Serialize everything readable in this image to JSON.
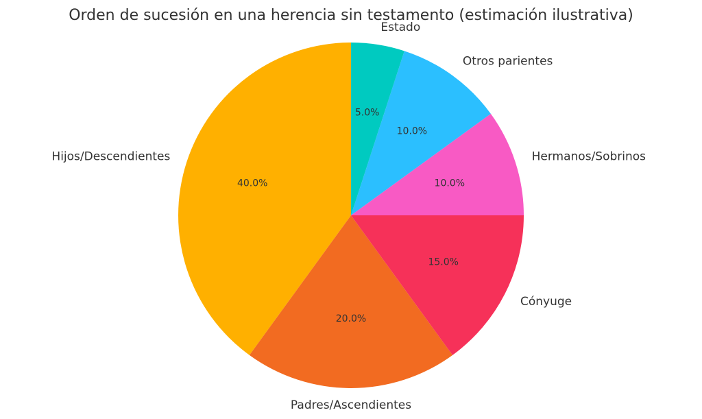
{
  "chart_data": {
    "type": "pie",
    "title": "Orden de sucesión en una herencia sin testamento (estimación ilustrativa)",
    "start_angle_deg": 90,
    "direction": "counterclockwise",
    "slices": [
      {
        "label": "Hijos/Descendientes",
        "value": 40.0,
        "pct_label": "40.0%",
        "color": "#FFB000"
      },
      {
        "label": "Padres/Ascendientes",
        "value": 20.0,
        "pct_label": "20.0%",
        "color": "#F26B21"
      },
      {
        "label": "Cónyuge",
        "value": 15.0,
        "pct_label": "15.0%",
        "color": "#F63159"
      },
      {
        "label": "Hermanos/Sobrinos",
        "value": 10.0,
        "pct_label": "10.0%",
        "color": "#F85AC4"
      },
      {
        "label": "Otros parientes",
        "value": 10.0,
        "pct_label": "10.0%",
        "color": "#2BBFFF"
      },
      {
        "label": "Estado",
        "value": 5.0,
        "pct_label": "5.0%",
        "color": "#00CAC0"
      }
    ]
  }
}
